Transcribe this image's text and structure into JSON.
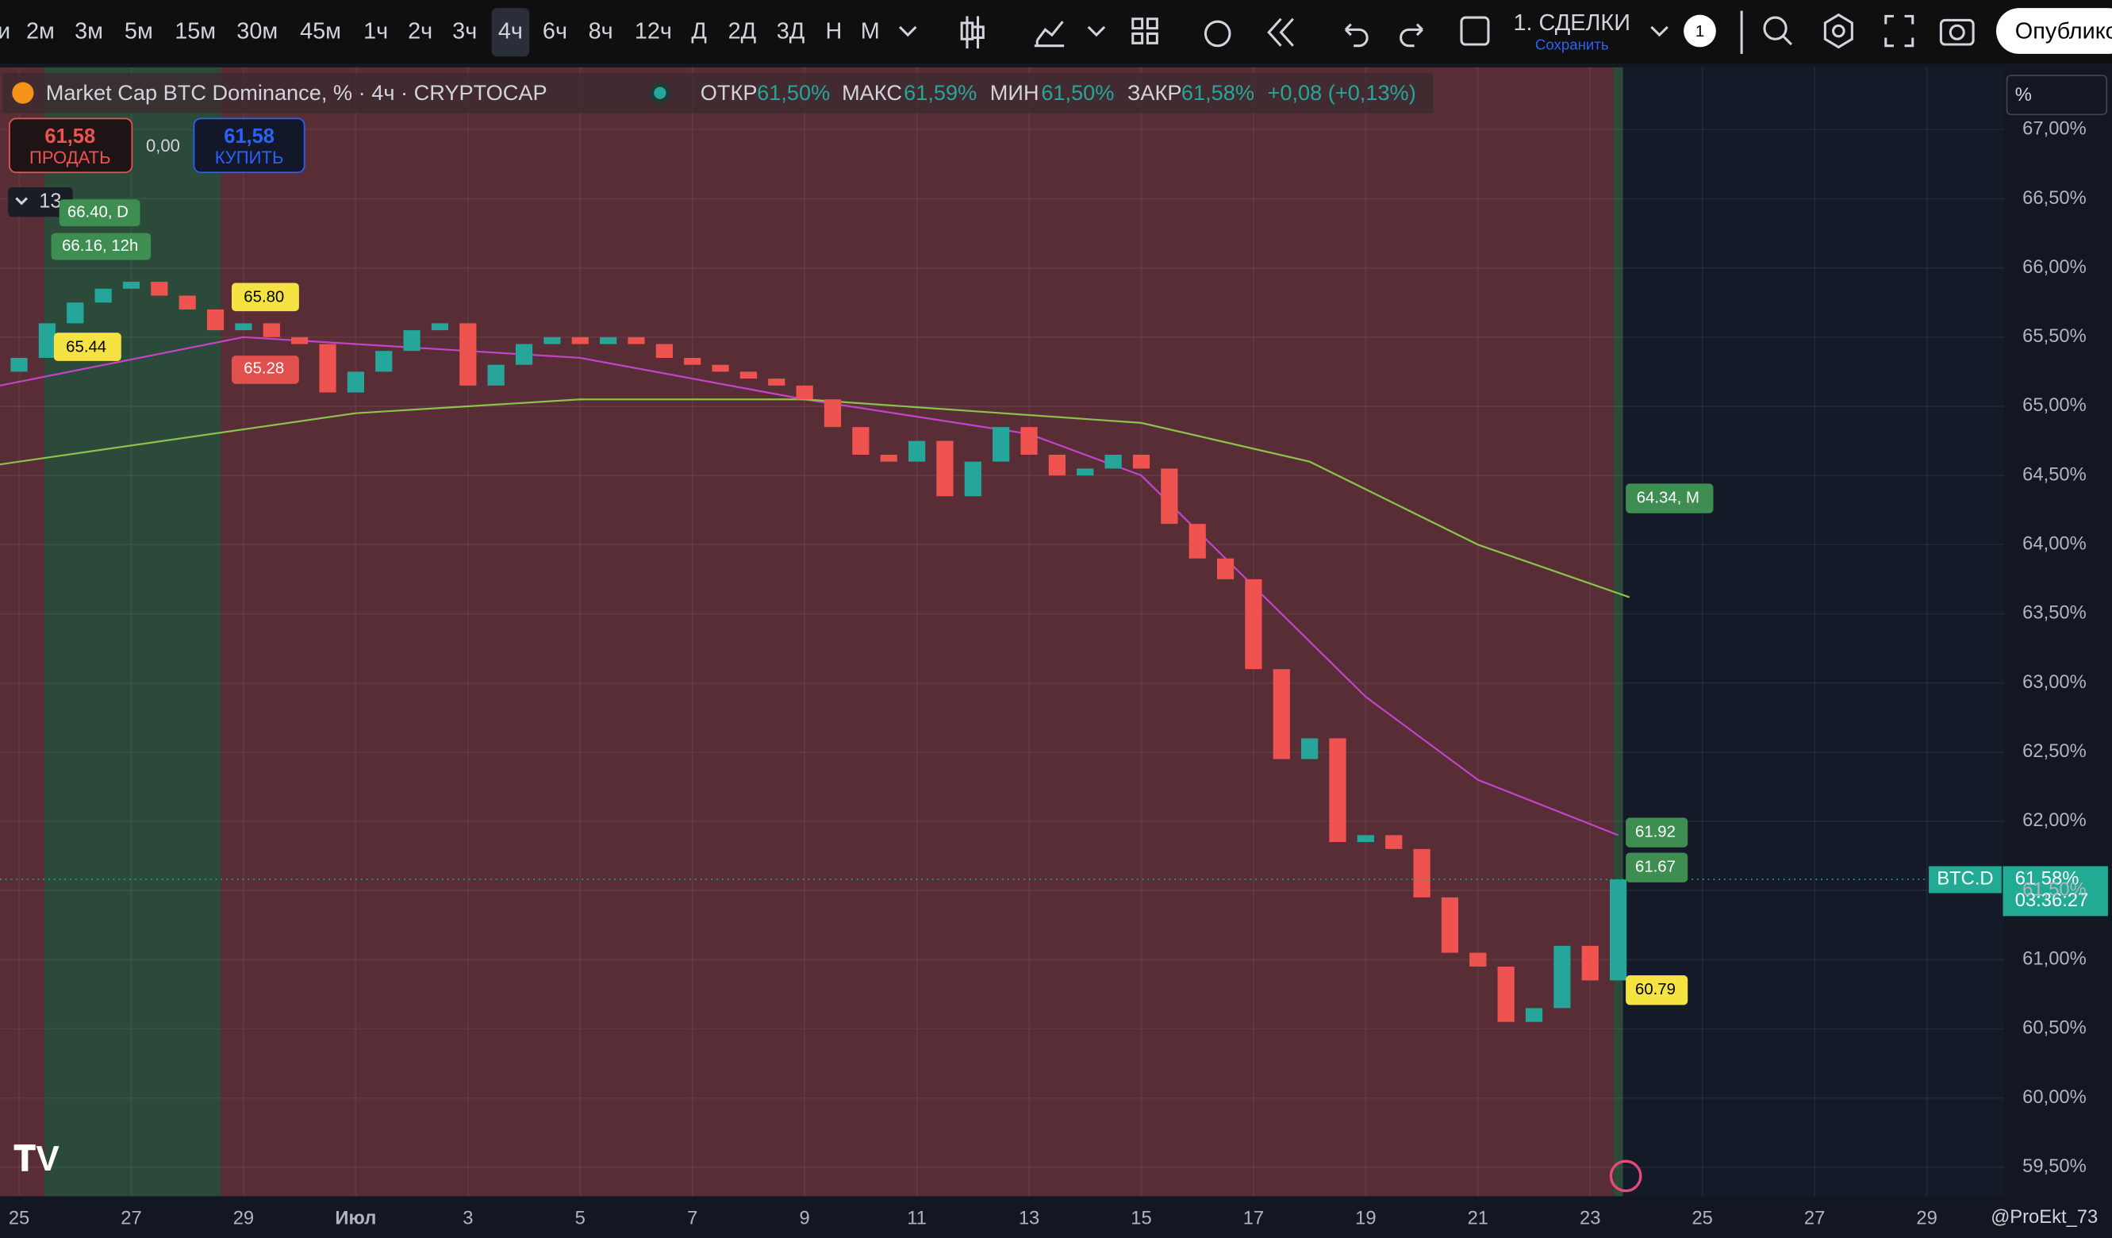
{
  "toolbar": {
    "intervals": [
      "и",
      "2м",
      "3м",
      "5м",
      "15м",
      "30м",
      "45м",
      "1ч",
      "2ч",
      "3ч",
      "4ч",
      "6ч",
      "8ч",
      "12ч",
      "Д",
      "2Д",
      "3Д",
      "Н",
      "М"
    ],
    "layout_name": "1. СДЕЛКИ",
    "save": "Сохранить",
    "badge": "1",
    "publish": "Опублико"
  },
  "legend": {
    "title": "Market Cap BTC Dominance, % · 4ч · CRYPTOCAP",
    "open_label": "ОТКР",
    "open": "61,50%",
    "high_label": "МАКС",
    "high": "61,59%",
    "low_label": "МИН",
    "low": "61,50%",
    "close_label": "ЗАКР",
    "close": "61,58%",
    "change": "+0,08 (+0,13%)"
  },
  "trade": {
    "sell_price": "61,58",
    "sell": "ПРОДАТЬ",
    "spread": "0,00",
    "buy_price": "61,58",
    "buy": "КУПИТЬ",
    "indicators": "13"
  },
  "tags": {
    "d": "66.40, D",
    "h12": "66.16, 12h",
    "y1": "65.80",
    "y2": "65.44",
    "r1": "65.28",
    "m": "64.34, M",
    "g1": "61.92",
    "g2": "61.67",
    "y3": "60.79"
  },
  "price_scale": {
    "unit": "%",
    "symbol": "BTC.D",
    "last": "61,58%",
    "timer": "03:36:27"
  },
  "footer": {
    "user": "@ProEkt_73"
  },
  "chart_data": {
    "type": "candlestick",
    "x": [
      0,
      0.5,
      1,
      1.5,
      2,
      2.5,
      3,
      3.5,
      4,
      4.5,
      5,
      5.5,
      6,
      6.5,
      7,
      7.5,
      8,
      8.5,
      9,
      9.5,
      10,
      10.5,
      11,
      11.5,
      12,
      12.5,
      13,
      13.5,
      14,
      14.5,
      15,
      15.5,
      16,
      16.5,
      17,
      17.5,
      18,
      18.5,
      19,
      19.5,
      20,
      20.5,
      21,
      21.5,
      22,
      22.5,
      23,
      23.5,
      24,
      24.5,
      25,
      25.5,
      26,
      26.5,
      27,
      27.5,
      28,
      28.5
    ],
    "open": [
      65.25,
      65.35,
      65.6,
      65.75,
      65.85,
      65.9,
      65.8,
      65.7,
      65.55,
      65.6,
      65.5,
      65.45,
      65.1,
      65.25,
      65.4,
      65.55,
      65.6,
      65.15,
      65.3,
      65.45,
      65.5,
      65.45,
      65.5,
      65.45,
      65.35,
      65.3,
      65.25,
      65.2,
      65.15,
      65.05,
      64.85,
      64.65,
      64.6,
      64.75,
      64.35,
      64.6,
      64.85,
      64.65,
      64.5,
      64.55,
      64.65,
      64.55,
      64.15,
      63.9,
      63.75,
      63.1,
      62.45,
      62.6,
      61.85,
      61.9,
      61.8,
      61.45,
      61.05,
      60.95,
      60.55,
      60.65,
      61.1,
      60.85
    ],
    "close": [
      65.35,
      65.6,
      65.75,
      65.85,
      65.9,
      65.8,
      65.7,
      65.55,
      65.6,
      65.5,
      65.45,
      65.1,
      65.25,
      65.4,
      65.55,
      65.6,
      65.15,
      65.3,
      65.45,
      65.5,
      65.45,
      65.5,
      65.45,
      65.35,
      65.3,
      65.25,
      65.2,
      65.15,
      65.05,
      64.85,
      64.65,
      64.6,
      64.75,
      64.35,
      64.6,
      64.85,
      64.65,
      64.5,
      64.55,
      64.65,
      64.55,
      64.15,
      63.9,
      63.75,
      63.1,
      62.45,
      62.6,
      61.85,
      61.9,
      61.8,
      61.45,
      61.05,
      60.95,
      60.55,
      60.65,
      61.1,
      60.85,
      61.58
    ],
    "colors": {
      "up": "#26a69a",
      "down": "#ef5350"
    },
    "lines": [
      {
        "color": "#c344c8",
        "x": [
          -0.34,
          4,
          10,
          14,
          18,
          20,
          22,
          24,
          26,
          28.5
        ],
        "values": [
          65.15,
          65.5,
          65.35,
          65.05,
          64.8,
          64.5,
          63.7,
          62.9,
          62.3,
          61.9
        ]
      },
      {
        "color": "#8bc34a",
        "x": [
          -0.34,
          6,
          10,
          14,
          20,
          23,
          26,
          28.7
        ],
        "values": [
          64.58,
          64.95,
          65.05,
          65.05,
          64.88,
          64.6,
          64.0,
          63.62
        ]
      }
    ],
    "xlim": [
      -0.34,
      35.38
    ],
    "ylim": [
      59.29,
      67.45
    ],
    "xticks": [
      {
        "value": 0,
        "label": "25"
      },
      {
        "value": 2,
        "label": "27"
      },
      {
        "value": 4,
        "label": "29"
      },
      {
        "value": 6,
        "label": "Июл"
      },
      {
        "value": 8,
        "label": "3"
      },
      {
        "value": 10,
        "label": "5"
      },
      {
        "value": 12,
        "label": "7"
      },
      {
        "value": 14,
        "label": "9"
      },
      {
        "value": 16,
        "label": "11"
      },
      {
        "value": 18,
        "label": "13"
      },
      {
        "value": 20,
        "label": "15"
      },
      {
        "value": 22,
        "label": "17"
      },
      {
        "value": 24,
        "label": "19"
      },
      {
        "value": 26,
        "label": "21"
      },
      {
        "value": 28,
        "label": "23"
      },
      {
        "value": 30,
        "label": "25"
      },
      {
        "value": 32,
        "label": "27"
      },
      {
        "value": 34,
        "label": "29"
      }
    ],
    "yticks": [
      {
        "value": 67,
        "label": "67,00%"
      },
      {
        "value": 66.5,
        "label": "66,50%"
      },
      {
        "value": 66,
        "label": "66,00%"
      },
      {
        "value": 65.5,
        "label": "65,50%"
      },
      {
        "value": 65,
        "label": "65,00%"
      },
      {
        "value": 64.5,
        "label": "64,50%"
      },
      {
        "value": 64,
        "label": "64,00%"
      },
      {
        "value": 63.5,
        "label": "63,50%"
      },
      {
        "value": 63,
        "label": "63,00%"
      },
      {
        "value": 62.5,
        "label": "62,50%"
      },
      {
        "value": 62,
        "label": "62,00%"
      },
      {
        "value": 61.5,
        "label": "61,50%"
      },
      {
        "value": 61,
        "label": "61,00%"
      },
      {
        "value": 60.5,
        "label": "60,50%"
      },
      {
        "value": 60,
        "label": "60,00%"
      },
      {
        "value": 59.5,
        "label": "59,50%"
      }
    ],
    "grid": true
  }
}
